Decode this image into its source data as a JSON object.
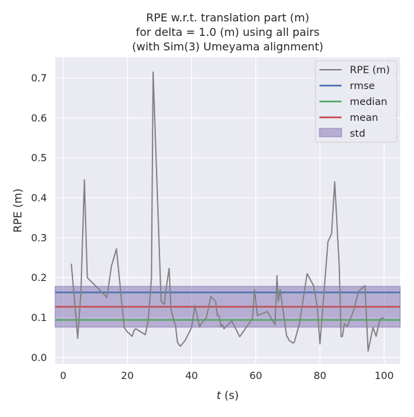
{
  "chart_data": {
    "type": "line",
    "title": [
      "RPE w.r.t. translation part (m)",
      "for delta = 1.0 (m) using all pairs",
      "(with Sim(3) Umeyama alignment)"
    ],
    "xlabel_var": "t",
    "xlabel_unit": " (s)",
    "ylabel": "RPE (m)",
    "xlim": [
      -2.5,
      105
    ],
    "ylim": [
      -0.016,
      0.752
    ],
    "xticks": [
      0,
      20,
      40,
      60,
      80,
      100
    ],
    "yticks": [
      0.0,
      0.1,
      0.2,
      0.3,
      0.4,
      0.5,
      0.6,
      0.7
    ],
    "ytick_labels": [
      "0.0",
      "0.1",
      "0.2",
      "0.3",
      "0.4",
      "0.5",
      "0.6",
      "0.7"
    ],
    "grid": true,
    "legend_position": "top-right",
    "series": [
      {
        "name": "RPE (m)",
        "color": "#808080",
        "x": [
          2.5,
          3.6,
          4.5,
          5.5,
          6.6,
          7.5,
          12.5,
          13.6,
          15.0,
          16.6,
          19.0,
          20.1,
          21.5,
          22.1,
          22.6,
          25.6,
          26.5,
          27.5,
          28.0,
          30.5,
          31.5,
          32.0,
          33.0,
          33.6,
          34.2,
          35.0,
          35.6,
          36.5,
          37.5,
          38.0,
          40.0,
          41.0,
          42.5,
          43.0,
          44.6,
          46.0,
          47.5,
          48.0,
          48.6,
          49.1,
          49.6,
          50.1,
          52.5,
          55.0,
          59.0,
          59.6,
          60.5,
          63.6,
          66.0,
          66.6,
          67.0,
          67.6,
          69.6,
          70.5,
          71.6,
          72.0,
          73.6,
          76.0,
          78.0,
          79.2,
          80.0,
          82.5,
          83.6,
          84.6,
          86.0,
          86.6,
          87.0,
          87.6,
          88.5,
          90.6,
          92.0,
          94.0,
          95.0,
          96.5,
          97.5,
          98.5,
          99.0,
          100.0
        ],
        "y": [
          0.235,
          0.135,
          0.048,
          0.16,
          0.445,
          0.2,
          0.16,
          0.15,
          0.228,
          0.272,
          0.075,
          0.063,
          0.053,
          0.068,
          0.072,
          0.057,
          0.095,
          0.198,
          0.715,
          0.14,
          0.133,
          0.17,
          0.223,
          0.12,
          0.1,
          0.08,
          0.038,
          0.028,
          0.038,
          0.043,
          0.075,
          0.13,
          0.076,
          0.085,
          0.1,
          0.153,
          0.14,
          0.105,
          0.104,
          0.078,
          0.082,
          0.072,
          0.092,
          0.052,
          0.098,
          0.17,
          0.105,
          0.115,
          0.082,
          0.205,
          0.14,
          0.17,
          0.055,
          0.042,
          0.036,
          0.038,
          0.085,
          0.21,
          0.18,
          0.125,
          0.034,
          0.29,
          0.31,
          0.44,
          0.23,
          0.052,
          0.053,
          0.085,
          0.077,
          0.12,
          0.165,
          0.18,
          0.016,
          0.075,
          0.053,
          0.09,
          0.098,
          0.099
        ]
      },
      {
        "name": "rmse",
        "color": "#4c72b0",
        "constant": 0.163
      },
      {
        "name": "median",
        "color": "#55a868",
        "constant": 0.094
      },
      {
        "name": "mean",
        "color": "#c44e52",
        "constant": 0.127
      },
      {
        "name": "std",
        "color": "#8172b2",
        "band": [
          0.076,
          0.178
        ]
      }
    ]
  }
}
